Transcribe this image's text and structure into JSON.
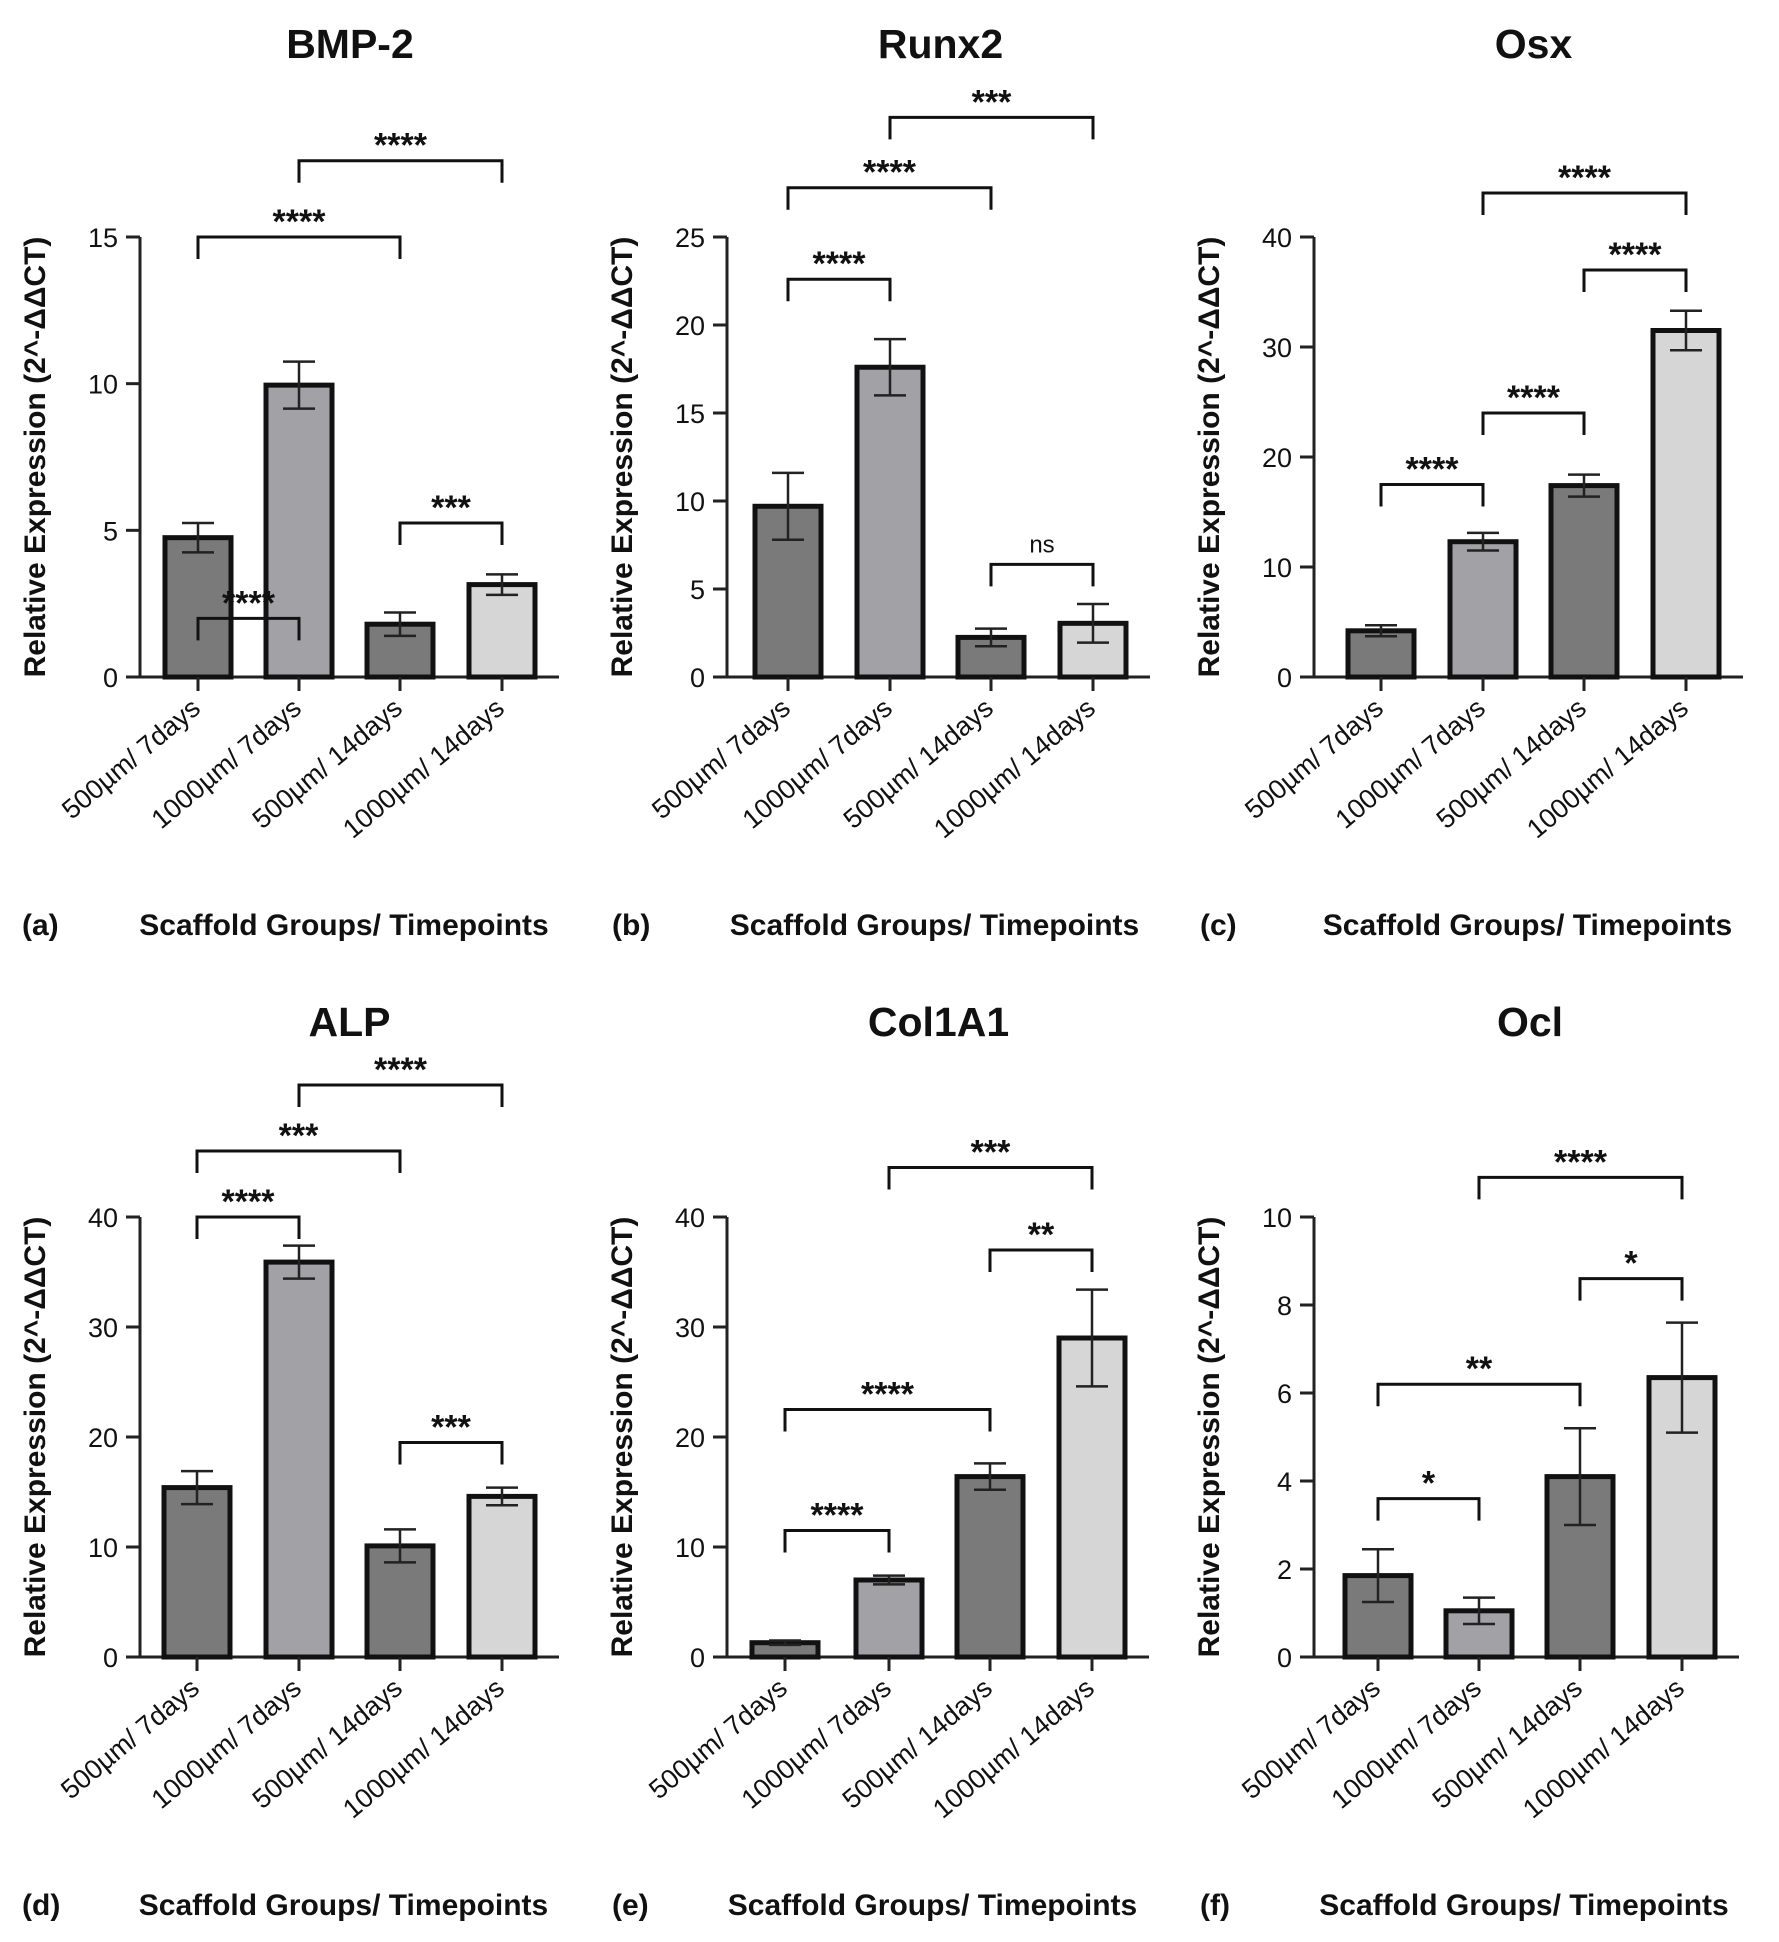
{
  "figure": {
    "x_axis_title": "Scaffold Groups/ Timepoints",
    "y_axis_title": "Relative Expression (2^-ΔΔCT)",
    "bar_colors": [
      "#7a7a7a",
      "#a2a2a6",
      "#7a7a7a",
      "#d6d6d6"
    ]
  },
  "chart_data": [
    {
      "type": "bar",
      "panel": "(a)",
      "title": "BMP-2",
      "xlabel": "Scaffold Groups/ Timepoints",
      "ylabel": "Relative Expression (2^-ΔΔCT)",
      "categories": [
        "500µm/ 7days",
        "1000µm/ 7days",
        "500µm/ 14days",
        "1000µm/ 14days"
      ],
      "values": [
        4.75,
        9.95,
        1.8,
        3.15
      ],
      "errors": [
        0.5,
        0.8,
        0.4,
        0.35
      ],
      "ylim": [
        0,
        15
      ],
      "yticks": [
        0,
        5,
        10,
        15
      ],
      "significance": [
        {
          "from": 0,
          "to": 1,
          "label": "****",
          "level": 2.0
        },
        {
          "from": 0,
          "to": 2,
          "label": "****",
          "level": 15.0
        },
        {
          "from": 1,
          "to": 3,
          "label": "****",
          "level": 17.6
        },
        {
          "from": 2,
          "to": 3,
          "label": "***",
          "level": 5.25
        }
      ]
    },
    {
      "type": "bar",
      "panel": "(b)",
      "title": "Runx2",
      "xlabel": "Scaffold Groups/ Timepoints",
      "ylabel": "Relative Expression (2^-ΔΔCT)",
      "categories": [
        "500µm/ 7days",
        "1000µm/ 7days",
        "500µm/ 14days",
        "1000µm/ 14days"
      ],
      "values": [
        9.7,
        17.6,
        2.25,
        3.05
      ],
      "errors": [
        1.9,
        1.6,
        0.5,
        1.1
      ],
      "ylim": [
        0,
        25
      ],
      "yticks": [
        0,
        5,
        10,
        15,
        20,
        25
      ],
      "significance": [
        {
          "from": 0,
          "to": 1,
          "label": "****",
          "level": 22.6
        },
        {
          "from": 0,
          "to": 2,
          "label": "****",
          "level": 27.8
        },
        {
          "from": 1,
          "to": 3,
          "label": "***",
          "level": 31.8
        },
        {
          "from": 2,
          "to": 3,
          "label": "ns",
          "level": 6.4
        }
      ]
    },
    {
      "type": "bar",
      "panel": "(c)",
      "title": "Osx",
      "xlabel": "Scaffold Groups/ Timepoints",
      "ylabel": "Relative Expression (2^-ΔΔCT)",
      "categories": [
        "500µm/ 7days",
        "1000µm/ 7days",
        "500µm/ 14days",
        "1000µm/ 14days"
      ],
      "values": [
        4.2,
        12.3,
        17.4,
        31.5
      ],
      "errors": [
        0.5,
        0.8,
        1.0,
        1.8
      ],
      "ylim": [
        0,
        40
      ],
      "yticks": [
        0,
        10,
        20,
        30,
        40
      ],
      "significance": [
        {
          "from": 0,
          "to": 1,
          "label": "****",
          "level": 17.5
        },
        {
          "from": 1,
          "to": 2,
          "label": "****",
          "level": 24.0
        },
        {
          "from": 2,
          "to": 3,
          "label": "****",
          "level": 37.0
        },
        {
          "from": 1,
          "to": 3,
          "label": "****",
          "level": 44.0
        }
      ]
    },
    {
      "type": "bar",
      "panel": "(d)",
      "title": "ALP",
      "xlabel": "Scaffold Groups/ Timepoints",
      "ylabel": "Relative Expression (2^-ΔΔCT)",
      "categories": [
        "500µm/ 7days",
        "1000µm/ 7days",
        "500µm/ 14days",
        "1000µm/ 14days"
      ],
      "values": [
        15.4,
        35.9,
        10.1,
        14.6
      ],
      "errors": [
        1.5,
        1.5,
        1.5,
        0.8
      ],
      "ylim": [
        0,
        40
      ],
      "yticks": [
        0,
        10,
        20,
        30,
        40
      ],
      "significance": [
        {
          "from": 0,
          "to": 1,
          "label": "****",
          "level": 40.0
        },
        {
          "from": 0,
          "to": 2,
          "label": "***",
          "level": 46.0
        },
        {
          "from": 1,
          "to": 3,
          "label": "****",
          "level": 52.0
        },
        {
          "from": 2,
          "to": 3,
          "label": "***",
          "level": 19.5
        }
      ]
    },
    {
      "type": "bar",
      "panel": "(e)",
      "title": "Col1A1",
      "xlabel": "Scaffold Groups/ Timepoints",
      "ylabel": "Relative Expression (2^-ΔΔCT)",
      "categories": [
        "500µm/ 7days",
        "1000µm/ 7days",
        "500µm/ 14days",
        "1000µm/ 14days"
      ],
      "values": [
        1.3,
        7.0,
        16.4,
        29.0
      ],
      "errors": [
        0.2,
        0.4,
        1.2,
        4.4
      ],
      "ylim": [
        0,
        40
      ],
      "yticks": [
        0,
        10,
        20,
        30,
        40
      ],
      "significance": [
        {
          "from": 0,
          "to": 1,
          "label": "****",
          "level": 11.5
        },
        {
          "from": 0,
          "to": 2,
          "label": "****",
          "level": 22.5
        },
        {
          "from": 2,
          "to": 3,
          "label": "**",
          "level": 37.0
        },
        {
          "from": 1,
          "to": 3,
          "label": "***",
          "level": 44.5
        }
      ]
    },
    {
      "type": "bar",
      "panel": "(f)",
      "title": "Ocl",
      "xlabel": "Scaffold Groups/ Timepoints",
      "ylabel": "Relative Expression (2^-ΔΔCT)",
      "categories": [
        "500µm/ 7days",
        "1000µm/ 7days",
        "500µm/ 14days",
        "1000µm/ 14days"
      ],
      "values": [
        1.85,
        1.05,
        4.1,
        6.35
      ],
      "errors": [
        0.6,
        0.3,
        1.1,
        1.25
      ],
      "ylim": [
        0,
        10
      ],
      "yticks": [
        0,
        2,
        4,
        6,
        8,
        10
      ],
      "significance": [
        {
          "from": 0,
          "to": 1,
          "label": "*",
          "level": 3.6
        },
        {
          "from": 0,
          "to": 2,
          "label": "**",
          "level": 6.2
        },
        {
          "from": 2,
          "to": 3,
          "label": "*",
          "level": 8.6
        },
        {
          "from": 1,
          "to": 3,
          "label": "****",
          "level": 10.9
        }
      ]
    }
  ]
}
